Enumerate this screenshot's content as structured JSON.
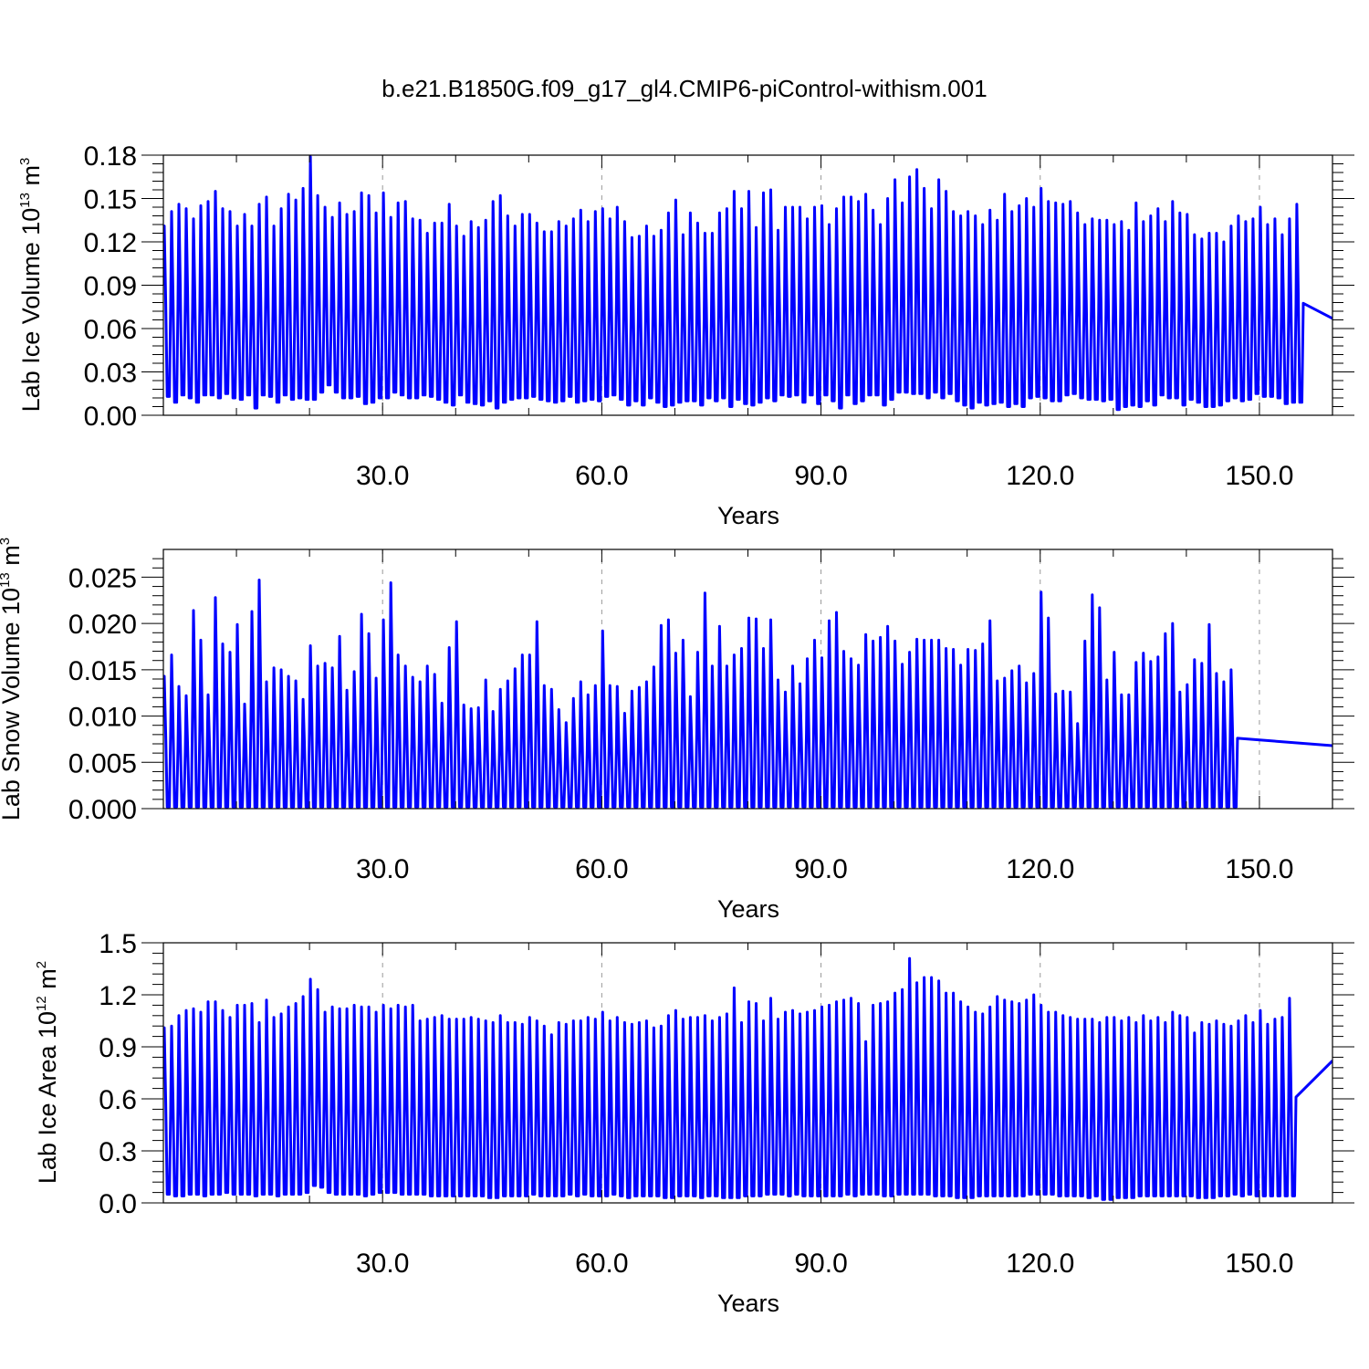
{
  "figure_title": "b.e21.B1850G.f09_g17_gl4.CMIP6-piControl-withism.001",
  "colors": {
    "series": "#0000ff",
    "axes": "#000000",
    "grid": "#999999"
  },
  "chart_data": [
    {
      "type": "line",
      "title": "",
      "xlabel": "Years",
      "ylabel": {
        "base": "Lab Ice Volume 10",
        "exponent": "13",
        "unit": " m",
        "unit_exponent": "3"
      },
      "xlim": [
        0,
        160
      ],
      "ylim": [
        0,
        0.18
      ],
      "xticks": [
        30,
        60,
        90,
        120,
        150
      ],
      "xtick_labels": [
        "30.0",
        "60.0",
        "90.0",
        "120.0",
        "150.0"
      ],
      "yticks": [
        0,
        0.03,
        0.06,
        0.09,
        0.12,
        0.15,
        0.18
      ],
      "ytick_labels": [
        "0.00",
        "0.03",
        "0.06",
        "0.09",
        "0.12",
        "0.15",
        "0.18"
      ],
      "grid": "vertical dashed at major x ticks",
      "series": [
        {
          "peaks": [
            0.131,
            0.141,
            0.146,
            0.143,
            0.136,
            0.145,
            0.148,
            0.155,
            0.143,
            0.141,
            0.131,
            0.139,
            0.131,
            0.146,
            0.151,
            0.131,
            0.143,
            0.153,
            0.149,
            0.157,
            0.179,
            0.152,
            0.144,
            0.137,
            0.147,
            0.139,
            0.141,
            0.154,
            0.152,
            0.14,
            0.154,
            0.137,
            0.147,
            0.148,
            0.136,
            0.135,
            0.126,
            0.133,
            0.133,
            0.146,
            0.131,
            0.124,
            0.134,
            0.13,
            0.135,
            0.148,
            0.152,
            0.138,
            0.131,
            0.139,
            0.139,
            0.133,
            0.127,
            0.127,
            0.134,
            0.131,
            0.136,
            0.142,
            0.134,
            0.141,
            0.143,
            0.136,
            0.144,
            0.134,
            0.123,
            0.124,
            0.131,
            0.124,
            0.128,
            0.14,
            0.149,
            0.125,
            0.14,
            0.133,
            0.126,
            0.126,
            0.14,
            0.143,
            0.155,
            0.143,
            0.155,
            0.13,
            0.154,
            0.156,
            0.128,
            0.144,
            0.144,
            0.144,
            0.136,
            0.144,
            0.145,
            0.132,
            0.143,
            0.151,
            0.151,
            0.148,
            0.153,
            0.142,
            0.132,
            0.15,
            0.163,
            0.147,
            0.165,
            0.17,
            0.157,
            0.143,
            0.163,
            0.155,
            0.141,
            0.138,
            0.141,
            0.138,
            0.132,
            0.142,
            0.135,
            0.153,
            0.141,
            0.145,
            0.15,
            0.144,
            0.157,
            0.148,
            0.147,
            0.146,
            0.148,
            0.14,
            0.132,
            0.136,
            0.135,
            0.135,
            0.132,
            0.134,
            0.128,
            0.147,
            0.134,
            0.138,
            0.143,
            0.134,
            0.148,
            0.14,
            0.139,
            0.125,
            0.122,
            0.126,
            0.126,
            0.12,
            0.131,
            0.138,
            0.134,
            0.136,
            0.144,
            0.132,
            0.136,
            0.125,
            0.136,
            0.146
          ],
          "troughs": [
            0.013,
            0.009,
            0.014,
            0.012,
            0.009,
            0.014,
            0.014,
            0.012,
            0.015,
            0.012,
            0.011,
            0.014,
            0.005,
            0.014,
            0.013,
            0.009,
            0.014,
            0.011,
            0.012,
            0.011,
            0.011,
            0.016,
            0.021,
            0.016,
            0.012,
            0.012,
            0.013,
            0.008,
            0.009,
            0.012,
            0.012,
            0.016,
            0.014,
            0.012,
            0.012,
            0.014,
            0.013,
            0.011,
            0.009,
            0.007,
            0.014,
            0.009,
            0.008,
            0.007,
            0.01,
            0.005,
            0.009,
            0.011,
            0.012,
            0.012,
            0.013,
            0.011,
            0.01,
            0.009,
            0.01,
            0.013,
            0.009,
            0.01,
            0.011,
            0.01,
            0.013,
            0.014,
            0.011,
            0.007,
            0.01,
            0.007,
            0.012,
            0.009,
            0.006,
            0.007,
            0.009,
            0.01,
            0.01,
            0.007,
            0.012,
            0.01,
            0.012,
            0.006,
            0.011,
            0.008,
            0.007,
            0.009,
            0.012,
            0.01,
            0.014,
            0.013,
            0.014,
            0.009,
            0.014,
            0.008,
            0.014,
            0.01,
            0.005,
            0.014,
            0.008,
            0.01,
            0.014,
            0.014,
            0.007,
            0.011,
            0.016,
            0.016,
            0.015,
            0.015,
            0.012,
            0.016,
            0.012,
            0.015,
            0.01,
            0.007,
            0.005,
            0.009,
            0.007,
            0.008,
            0.009,
            0.006,
            0.008,
            0.006,
            0.012,
            0.013,
            0.012,
            0.01,
            0.01,
            0.014,
            0.015,
            0.012,
            0.011,
            0.011,
            0.01,
            0.011,
            0.004,
            0.006,
            0.007,
            0.006,
            0.01,
            0.007,
            0.014,
            0.012,
            0.012,
            0.007,
            0.011,
            0.009,
            0.006,
            0.006,
            0.007,
            0.01,
            0.012,
            0.01,
            0.011,
            0.015,
            0.013,
            0.013,
            0.012,
            0.008,
            0.009,
            0.009
          ],
          "first_value": 0.09,
          "last_value": 0.067
        }
      ]
    },
    {
      "type": "line",
      "title": "",
      "xlabel": "Years",
      "ylabel": {
        "base": "Lab Snow Volume 10",
        "exponent": "13",
        "unit": " m",
        "unit_exponent": "3"
      },
      "xlim": [
        0,
        160
      ],
      "ylim": [
        0,
        0.028
      ],
      "xticks": [
        30,
        60,
        90,
        120,
        150
      ],
      "xtick_labels": [
        "30.0",
        "60.0",
        "90.0",
        "120.0",
        "150.0"
      ],
      "yticks": [
        0,
        0.005,
        0.01,
        0.015,
        0.02,
        0.025
      ],
      "ytick_labels": [
        "0.000",
        "0.005",
        "0.010",
        "0.015",
        "0.020",
        "0.025"
      ],
      "grid": "vertical dashed at major x ticks",
      "series": [
        {
          "peaks": [
            0.0143,
            0.0166,
            0.0132,
            0.0122,
            0.0214,
            0.0182,
            0.0123,
            0.0228,
            0.0178,
            0.0169,
            0.0199,
            0.0113,
            0.0213,
            0.0247,
            0.0137,
            0.0152,
            0.015,
            0.0143,
            0.0138,
            0.0118,
            0.0176,
            0.0154,
            0.0157,
            0.0152,
            0.0186,
            0.0128,
            0.0148,
            0.021,
            0.0189,
            0.0141,
            0.0204,
            0.0244,
            0.0166,
            0.0154,
            0.0142,
            0.0137,
            0.0154,
            0.0145,
            0.0114,
            0.0174,
            0.0202,
            0.0112,
            0.0108,
            0.0109,
            0.0139,
            0.0105,
            0.0129,
            0.0138,
            0.0151,
            0.0166,
            0.0166,
            0.0202,
            0.0133,
            0.0129,
            0.0107,
            0.0093,
            0.0119,
            0.0137,
            0.0123,
            0.0133,
            0.0192,
            0.0133,
            0.0132,
            0.0103,
            0.0127,
            0.0131,
            0.0137,
            0.0153,
            0.0198,
            0.0204,
            0.0168,
            0.0182,
            0.0121,
            0.0169,
            0.0233,
            0.0154,
            0.0197,
            0.0154,
            0.0166,
            0.0173,
            0.0206,
            0.0205,
            0.0173,
            0.0204,
            0.0139,
            0.0126,
            0.0154,
            0.0135,
            0.0162,
            0.0182,
            0.0163,
            0.0203,
            0.0212,
            0.017,
            0.0162,
            0.0155,
            0.0188,
            0.0181,
            0.0185,
            0.0197,
            0.0181,
            0.0156,
            0.0169,
            0.0183,
            0.0182,
            0.0182,
            0.0182,
            0.0173,
            0.0172,
            0.0155,
            0.0172,
            0.0171,
            0.0178,
            0.0203,
            0.0138,
            0.0141,
            0.0149,
            0.0154,
            0.0136,
            0.0146,
            0.0234,
            0.0206,
            0.0124,
            0.0127,
            0.0126,
            0.0092,
            0.0181,
            0.0231,
            0.0217,
            0.0139,
            0.0169,
            0.0123,
            0.0123,
            0.0158,
            0.0168,
            0.0159,
            0.0164,
            0.0189,
            0.02,
            0.0126,
            0.0134,
            0.0161,
            0.0157,
            0.0199,
            0.0146,
            0.0137,
            0.015
          ],
          "troughs": [
            0.0002
          ],
          "first_value": 0.0105,
          "last_value": 0.0068
        }
      ]
    },
    {
      "type": "line",
      "title": "",
      "xlabel": "Years",
      "ylabel": {
        "base": "Lab Ice Area 10",
        "exponent": "12",
        "unit": " m",
        "unit_exponent": "2"
      },
      "xlim": [
        0,
        160
      ],
      "ylim": [
        0,
        1.5
      ],
      "xticks": [
        30,
        60,
        90,
        120,
        150
      ],
      "xtick_labels": [
        "30.0",
        "60.0",
        "90.0",
        "120.0",
        "150.0"
      ],
      "yticks": [
        0,
        0.3,
        0.6,
        0.9,
        1.2,
        1.5
      ],
      "ytick_labels": [
        "0.0",
        "0.3",
        "0.6",
        "0.9",
        "1.2",
        "1.5"
      ],
      "grid": "vertical dashed at major x ticks",
      "series": [
        {
          "peaks": [
            1.01,
            1.02,
            1.08,
            1.11,
            1.12,
            1.1,
            1.16,
            1.16,
            1.11,
            1.07,
            1.14,
            1.14,
            1.15,
            1.04,
            1.17,
            1.07,
            1.09,
            1.13,
            1.15,
            1.19,
            1.29,
            1.23,
            1.1,
            1.13,
            1.12,
            1.12,
            1.14,
            1.13,
            1.13,
            1.1,
            1.14,
            1.12,
            1.14,
            1.13,
            1.14,
            1.05,
            1.06,
            1.07,
            1.08,
            1.06,
            1.06,
            1.06,
            1.07,
            1.06,
            1.05,
            1.04,
            1.08,
            1.04,
            1.04,
            1.03,
            1.07,
            1.05,
            1.02,
            0.97,
            1.04,
            1.03,
            1.05,
            1.05,
            1.07,
            1.06,
            1.1,
            1.05,
            1.07,
            1.04,
            1.03,
            1.04,
            1.05,
            1.01,
            1.02,
            1.08,
            1.11,
            1.06,
            1.07,
            1.07,
            1.08,
            1.05,
            1.07,
            1.09,
            1.24,
            1.04,
            1.16,
            1.15,
            1.05,
            1.18,
            1.06,
            1.1,
            1.11,
            1.09,
            1.1,
            1.11,
            1.13,
            1.14,
            1.16,
            1.17,
            1.18,
            1.15,
            0.93,
            1.14,
            1.15,
            1.16,
            1.21,
            1.23,
            1.41,
            1.27,
            1.3,
            1.3,
            1.28,
            1.21,
            1.21,
            1.16,
            1.13,
            1.1,
            1.09,
            1.13,
            1.19,
            1.17,
            1.16,
            1.15,
            1.17,
            1.2,
            1.14,
            1.1,
            1.1,
            1.08,
            1.07,
            1.06,
            1.06,
            1.06,
            1.04,
            1.07,
            1.07,
            1.05,
            1.07,
            1.04,
            1.08,
            1.05,
            1.07,
            1.04,
            1.1,
            1.08,
            1.07,
            0.98,
            1.04,
            1.03,
            1.05,
            1.03,
            1.02,
            1.05,
            1.08,
            1.04,
            1.11,
            1.03,
            1.06,
            1.07,
            1.18
          ],
          "troughs": [
            0.05,
            0.04,
            0.04,
            0.05,
            0.05,
            0.04,
            0.05,
            0.05,
            0.06,
            0.05,
            0.05,
            0.05,
            0.04,
            0.05,
            0.05,
            0.04,
            0.05,
            0.05,
            0.05,
            0.06,
            0.1,
            0.09,
            0.06,
            0.05,
            0.05,
            0.05,
            0.05,
            0.04,
            0.05,
            0.06,
            0.06,
            0.06,
            0.05,
            0.05,
            0.05,
            0.05,
            0.04,
            0.04,
            0.04,
            0.04,
            0.04,
            0.04,
            0.04,
            0.04,
            0.03,
            0.03,
            0.04,
            0.04,
            0.04,
            0.04,
            0.05,
            0.04,
            0.04,
            0.04,
            0.04,
            0.05,
            0.04,
            0.05,
            0.04,
            0.04,
            0.04,
            0.05,
            0.04,
            0.03,
            0.04,
            0.04,
            0.04,
            0.04,
            0.03,
            0.03,
            0.04,
            0.04,
            0.04,
            0.03,
            0.04,
            0.04,
            0.03,
            0.03,
            0.03,
            0.04,
            0.04,
            0.04,
            0.05,
            0.05,
            0.05,
            0.04,
            0.05,
            0.04,
            0.04,
            0.04,
            0.04,
            0.04,
            0.04,
            0.05,
            0.04,
            0.05,
            0.05,
            0.05,
            0.04,
            0.04,
            0.05,
            0.05,
            0.05,
            0.05,
            0.05,
            0.04,
            0.04,
            0.04,
            0.03,
            0.03,
            0.03,
            0.04,
            0.04,
            0.04,
            0.04,
            0.04,
            0.04,
            0.04,
            0.05,
            0.05,
            0.05,
            0.05,
            0.04,
            0.04,
            0.04,
            0.04,
            0.03,
            0.04,
            0.02,
            0.02,
            0.03,
            0.03,
            0.03,
            0.04,
            0.04,
            0.04,
            0.04,
            0.04,
            0.04,
            0.04,
            0.04,
            0.03,
            0.03,
            0.03,
            0.04,
            0.04,
            0.05,
            0.04,
            0.05,
            0.04,
            0.04,
            0.04,
            0.04,
            0.04,
            0.04,
            0.04
          ],
          "first_value": 0.93,
          "last_value": 0.82
        }
      ]
    }
  ]
}
